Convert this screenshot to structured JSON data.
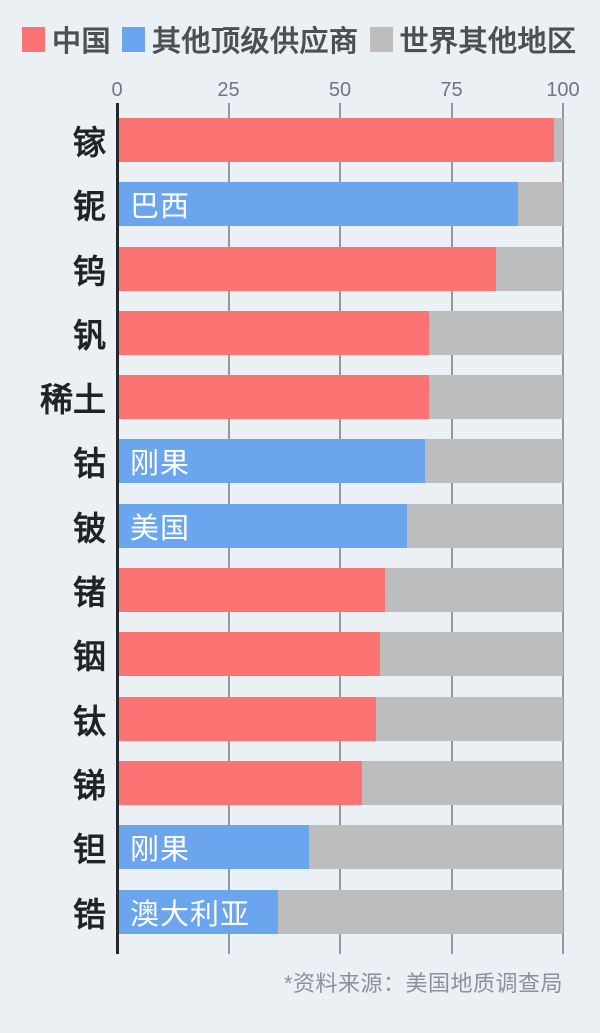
{
  "legend": {
    "items": [
      {
        "label": "中国",
        "color": "#fb7373"
      },
      {
        "label": "其他顶级供应商",
        "color": "#6ba5ee"
      },
      {
        "label": "世界其他地区",
        "color": "#bdbdbd"
      }
    ]
  },
  "axis": {
    "ticks": [
      0,
      25,
      50,
      75,
      100
    ],
    "min": 0,
    "max": 100
  },
  "chart_data": {
    "type": "bar",
    "orientation": "horizontal",
    "categories": [
      "镓",
      "铌",
      "钨",
      "钒",
      "稀土",
      "钴",
      "铍",
      "锗",
      "铟",
      "钛",
      "锑",
      "钽",
      "锆"
    ],
    "bars": [
      {
        "category": "镓",
        "value": 98,
        "series": "中国",
        "color_key": "china",
        "bar_label": ""
      },
      {
        "category": "铌",
        "value": 90,
        "series": "其他顶级供应商",
        "color_key": "other",
        "bar_label": "巴西"
      },
      {
        "category": "钨",
        "value": 85,
        "series": "中国",
        "color_key": "china",
        "bar_label": ""
      },
      {
        "category": "钒",
        "value": 70,
        "series": "中国",
        "color_key": "china",
        "bar_label": ""
      },
      {
        "category": "稀土",
        "value": 70,
        "series": "中国",
        "color_key": "china",
        "bar_label": ""
      },
      {
        "category": "钴",
        "value": 69,
        "series": "其他顶级供应商",
        "color_key": "other",
        "bar_label": "刚果"
      },
      {
        "category": "铍",
        "value": 65,
        "series": "其他顶级供应商",
        "color_key": "other",
        "bar_label": "美国"
      },
      {
        "category": "锗",
        "value": 60,
        "series": "中国",
        "color_key": "china",
        "bar_label": ""
      },
      {
        "category": "铟",
        "value": 59,
        "series": "中国",
        "color_key": "china",
        "bar_label": ""
      },
      {
        "category": "钛",
        "value": 58,
        "series": "中国",
        "color_key": "china",
        "bar_label": ""
      },
      {
        "category": "锑",
        "value": 55,
        "series": "中国",
        "color_key": "china",
        "bar_label": ""
      },
      {
        "category": "钽",
        "value": 43,
        "series": "其他顶级供应商",
        "color_key": "other",
        "bar_label": "刚果"
      },
      {
        "category": "锆",
        "value": 36,
        "series": "其他顶级供应商",
        "color_key": "other",
        "bar_label": "澳大利亚"
      }
    ],
    "remainder_series": "世界其他地区",
    "xlim": [
      0,
      100
    ],
    "legend_position": "top",
    "grid": "vertical"
  },
  "colors": {
    "china": "#fb7373",
    "other": "#6ba5ee",
    "rest": "#bdbdbd",
    "background": "#eaf0f3",
    "axis_line": "#26292c",
    "gridline": "#949a9f"
  },
  "footer": {
    "source": "*资料来源：美国地质调查局"
  }
}
